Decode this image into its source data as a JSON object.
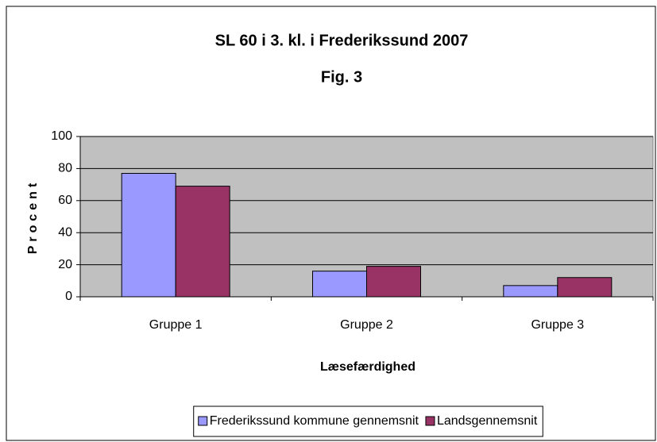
{
  "chart_data": {
    "type": "bar",
    "title": "SL 60 i 3. kl. i Frederikssund 2007",
    "subtitle": "Fig. 3",
    "x_label": "Læsefærdighed",
    "y_label": "Procent",
    "categories": [
      "Gruppe 1",
      "Gruppe 2",
      "Gruppe 3"
    ],
    "series": [
      {
        "name": "Frederikssund kommune gennemsnit",
        "color": "#9999ff",
        "values": [
          77,
          16,
          7
        ]
      },
      {
        "name": "Landsgennemsnit",
        "color": "#993366",
        "values": [
          69,
          19,
          12
        ]
      }
    ],
    "ylim": [
      0,
      100
    ],
    "yticks": [
      0,
      20,
      40,
      60,
      80,
      100
    ],
    "grid": true,
    "legend": "bottom"
  }
}
